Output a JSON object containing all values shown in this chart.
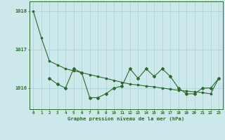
{
  "line1_x": [
    0,
    1,
    2,
    3,
    4,
    5,
    6,
    7,
    8,
    9,
    10,
    11,
    12,
    13,
    14,
    15,
    16,
    17,
    18,
    19,
    20,
    21,
    22,
    23
  ],
  "line1_y": [
    1018.0,
    1017.3,
    1016.7,
    1016.6,
    1016.5,
    1016.45,
    1016.4,
    1016.35,
    1016.3,
    1016.25,
    1016.2,
    1016.15,
    1016.1,
    1016.08,
    1016.05,
    1016.03,
    1016.0,
    1015.97,
    1015.94,
    1015.92,
    1015.9,
    1015.88,
    1015.85,
    1016.25
  ],
  "line2_x": [
    2,
    3,
    4,
    5,
    6,
    7,
    8,
    9,
    10,
    11,
    12,
    13,
    14,
    15,
    16,
    17,
    18,
    19,
    20,
    21,
    22,
    23
  ],
  "line2_y": [
    1016.25,
    1016.1,
    1016.0,
    1016.5,
    1016.4,
    1015.75,
    1015.75,
    1015.85,
    1016.0,
    1016.05,
    1016.5,
    1016.25,
    1016.5,
    1016.3,
    1016.5,
    1016.3,
    1016.0,
    1015.85,
    1015.85,
    1016.0,
    1016.0,
    1016.25
  ],
  "color": "#2d6a2d",
  "bg_color": "#cce8ea",
  "grid_color": "#b0d8db",
  "ylabel_ticks": [
    1016,
    1017,
    1018
  ],
  "ylim": [
    1015.45,
    1018.25
  ],
  "xlim": [
    -0.5,
    23.5
  ],
  "xlabel": "Graphe pression niveau de la mer (hPa)"
}
